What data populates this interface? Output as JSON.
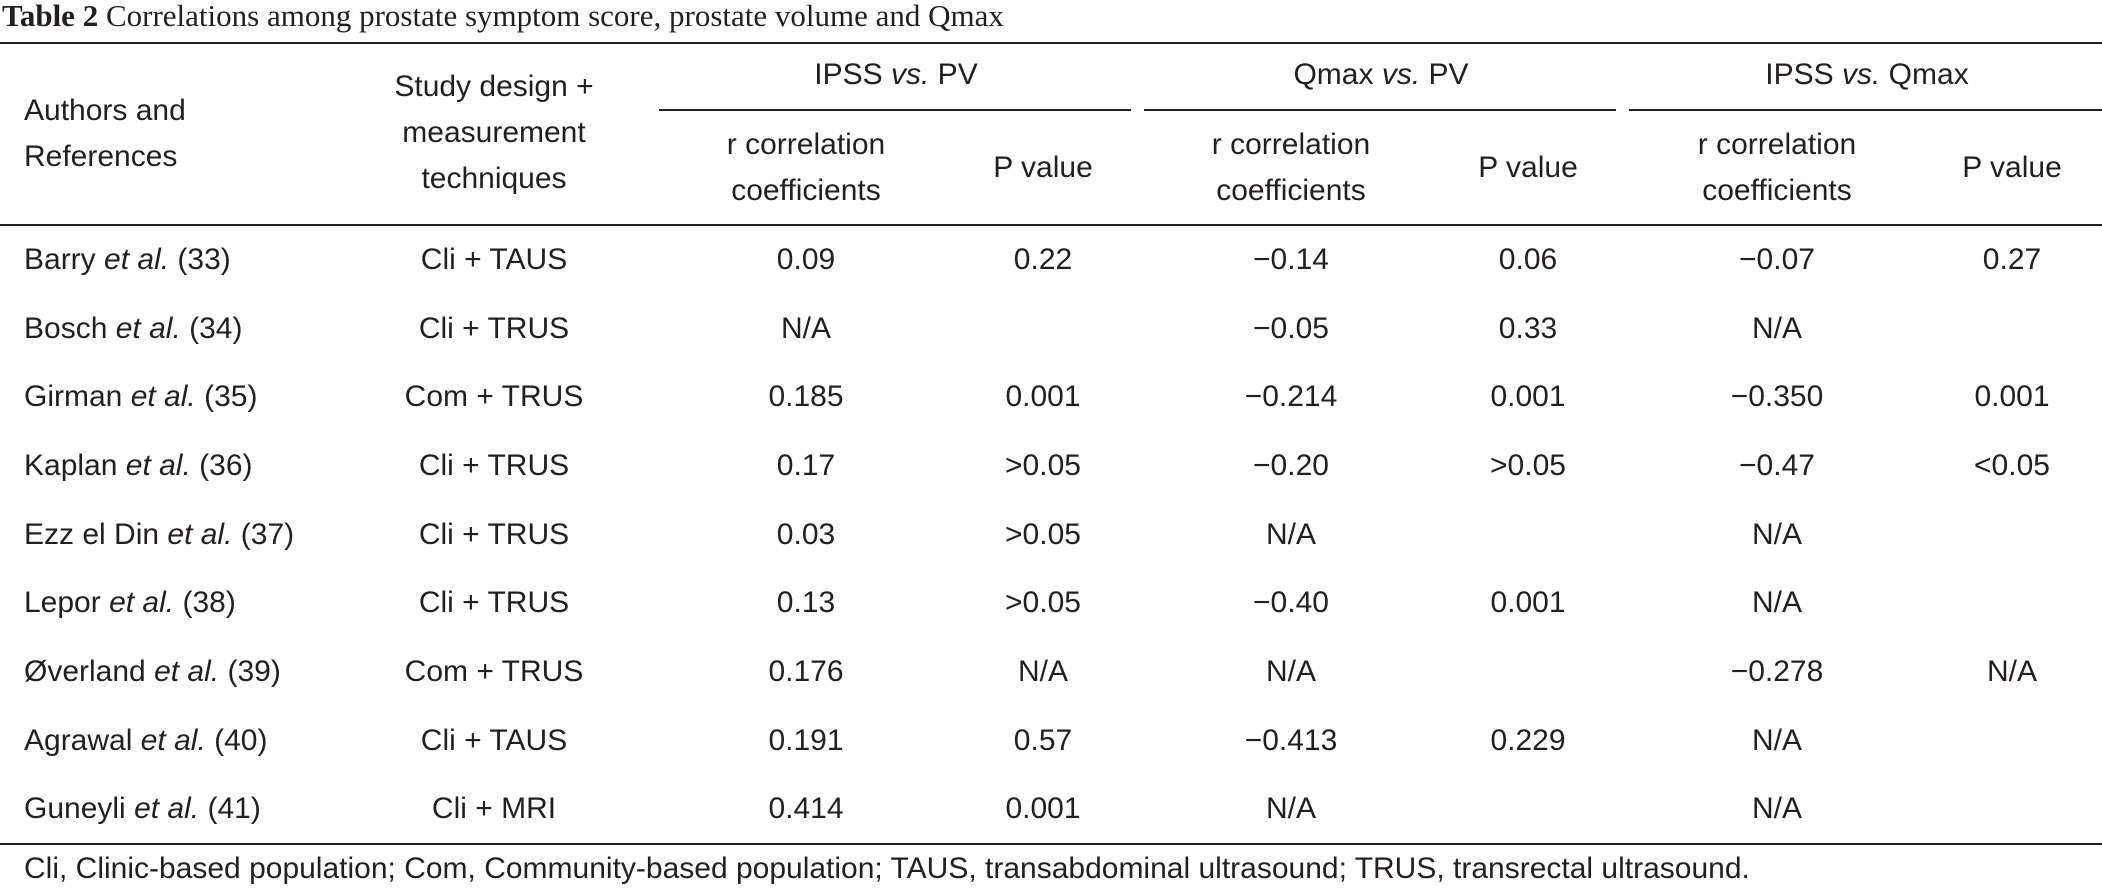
{
  "caption": {
    "label": "Table 2",
    "text": "Correlations among prostate symptom score, prostate volume and Qmax"
  },
  "header": {
    "authors": [
      "Authors and",
      "References"
    ],
    "design": [
      "Study design +",
      "measurement",
      "techniques"
    ],
    "groups": [
      {
        "a": "IPSS ",
        "vs": "vs.",
        "b": " PV"
      },
      {
        "a": "Qmax ",
        "vs": "vs.",
        "b": " PV"
      },
      {
        "a": "IPSS ",
        "vs": "vs.",
        "b": " Qmax"
      }
    ],
    "r_label": [
      "r correlation",
      "coefficients"
    ],
    "p_label": "P value"
  },
  "rows": [
    {
      "author": "Barry",
      "ref": "(33)",
      "design": "Cli + TAUS",
      "r1": "0.09",
      "p1": "0.22",
      "r2": "−0.14",
      "p2": "0.06",
      "r3": "−0.07",
      "p3": "0.27"
    },
    {
      "author": "Bosch",
      "ref": "(34)",
      "design": "Cli + TRUS",
      "r1": "N/A",
      "p1": "",
      "r2": "−0.05",
      "p2": "0.33",
      "r3": "N/A",
      "p3": ""
    },
    {
      "author": "Girman",
      "ref": "(35)",
      "design": "Com + TRUS",
      "r1": "0.185",
      "p1": "0.001",
      "r2": "−0.214",
      "p2": "0.001",
      "r3": "−0.350",
      "p3": "0.001"
    },
    {
      "author": "Kaplan",
      "ref": "(36)",
      "design": "Cli + TRUS",
      "r1": "0.17",
      "p1": ">0.05",
      "r2": "−0.20",
      "p2": ">0.05",
      "r3": "−0.47",
      "p3": "<0.05"
    },
    {
      "author": "Ezz el Din",
      "ref": "(37)",
      "design": "Cli + TRUS",
      "r1": "0.03",
      "p1": ">0.05",
      "r2": "N/A",
      "p2": "",
      "r3": "N/A",
      "p3": ""
    },
    {
      "author": "Lepor",
      "ref": "(38)",
      "design": "Cli + TRUS",
      "r1": "0.13",
      "p1": ">0.05",
      "r2": "−0.40",
      "p2": "0.001",
      "r3": "N/A",
      "p3": ""
    },
    {
      "author": "Øverland",
      "ref": "(39)",
      "design": "Com + TRUS",
      "r1": "0.176",
      "p1": "N/A",
      "r2": "N/A",
      "p2": "",
      "r3": "−0.278",
      "p3": "N/A"
    },
    {
      "author": "Agrawal",
      "ref": "(40)",
      "design": "Cli + TAUS",
      "r1": "0.191",
      "p1": "0.57",
      "r2": "−0.413",
      "p2": "0.229",
      "r3": "N/A",
      "p3": ""
    },
    {
      "author": "Guneyli",
      "ref": "(41)",
      "design": "Cli + MRI",
      "r1": "0.414",
      "p1": "0.001",
      "r2": "N/A",
      "p2": "",
      "r3": "N/A",
      "p3": ""
    }
  ],
  "etal": "et al.",
  "footnote": "Cli, Clinic-based population; Com, Community-based population; TAUS, transabdominal ultrasound; TRUS, transrectal ultrasound."
}
